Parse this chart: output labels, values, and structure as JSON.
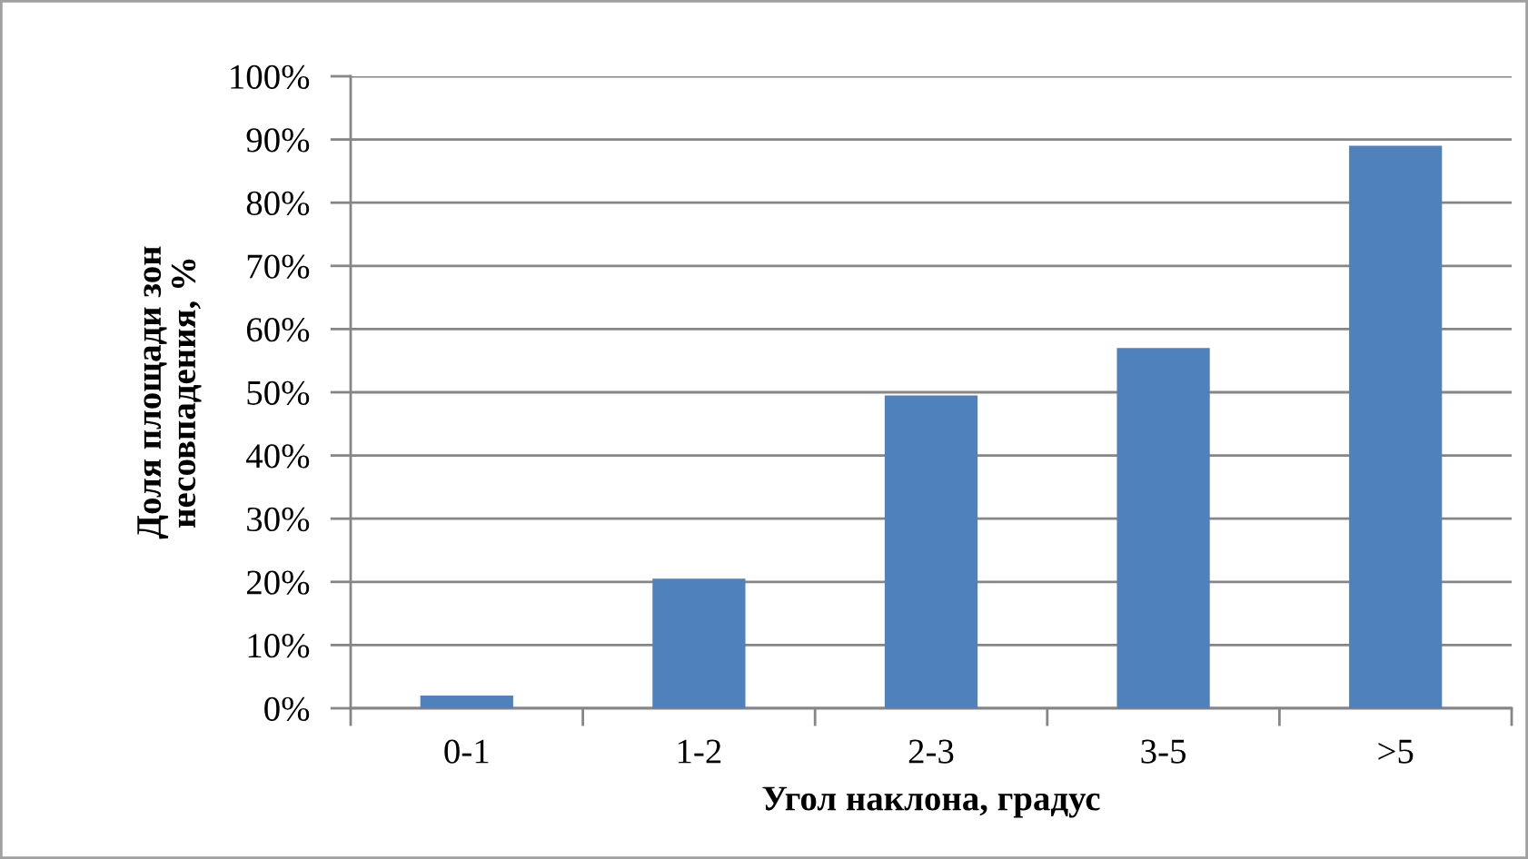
{
  "chart_data": {
    "type": "bar",
    "categories": [
      "0-1",
      "1-2",
      "2-3",
      "3-5",
      ">5"
    ],
    "values": [
      2,
      20.5,
      49.5,
      57,
      89
    ],
    "color": "#4f81bd",
    "xlabel": "Угол наклона, градус",
    "ylabel": "Доля площади зон\nнесовпадения, %",
    "ylim": [
      0,
      100
    ],
    "yticks": [
      {
        "value": 0,
        "label": "0%"
      },
      {
        "value": 10,
        "label": "10%"
      },
      {
        "value": 20,
        "label": "20%"
      },
      {
        "value": 30,
        "label": "30%"
      },
      {
        "value": 40,
        "label": "40%"
      },
      {
        "value": 50,
        "label": "50%"
      },
      {
        "value": 60,
        "label": "60%"
      },
      {
        "value": 70,
        "label": "70%"
      },
      {
        "value": 80,
        "label": "80%"
      },
      {
        "value": 90,
        "label": "90%"
      },
      {
        "value": 100,
        "label": "100%"
      }
    ],
    "grid": "y"
  }
}
